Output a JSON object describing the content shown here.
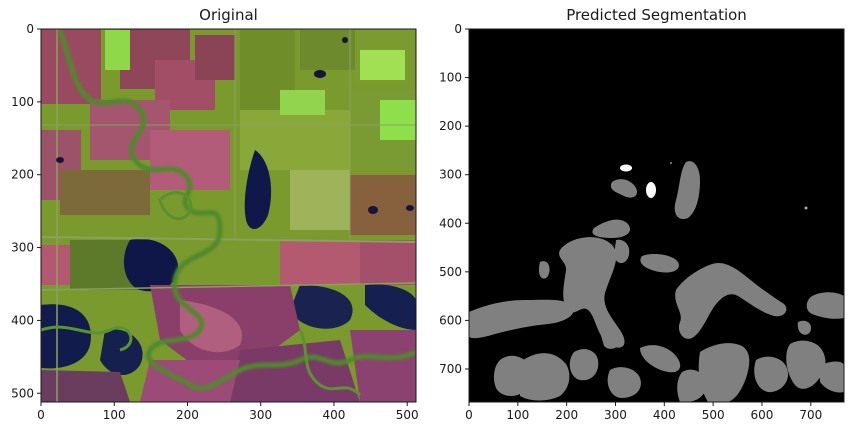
{
  "panels": [
    {
      "id": "original",
      "title": "Original",
      "x_ticks": [
        "0",
        "100",
        "200",
        "300",
        "400",
        "500"
      ],
      "x_tick_values": [
        0,
        100,
        200,
        300,
        400,
        500
      ],
      "y_ticks": [
        "0",
        "100",
        "200",
        "300",
        "400",
        "500"
      ],
      "y_tick_values": [
        0,
        100,
        200,
        300,
        400,
        500
      ],
      "x_range": [
        0,
        512
      ],
      "y_range": [
        0,
        512
      ]
    },
    {
      "id": "segmentation",
      "title": "Predicted Segmentation",
      "x_ticks": [
        "0",
        "100",
        "200",
        "300",
        "400",
        "500",
        "600",
        "700"
      ],
      "x_tick_values": [
        0,
        100,
        200,
        300,
        400,
        500,
        600,
        700
      ],
      "y_ticks": [
        "0",
        "100",
        "200",
        "300",
        "400",
        "500",
        "600",
        "700"
      ],
      "y_tick_values": [
        0,
        100,
        200,
        300,
        400,
        500,
        600,
        700
      ],
      "x_range": [
        0,
        768
      ],
      "y_range": [
        0,
        768
      ]
    }
  ],
  "colors": {
    "field_green": "#7fa02a",
    "field_pink": "#a8506a",
    "river_green": "#4f8a2a",
    "water_navy": "#101a4a",
    "mask_background": "#000000",
    "mask_gray": "#808080",
    "mask_white": "#ffffff"
  }
}
